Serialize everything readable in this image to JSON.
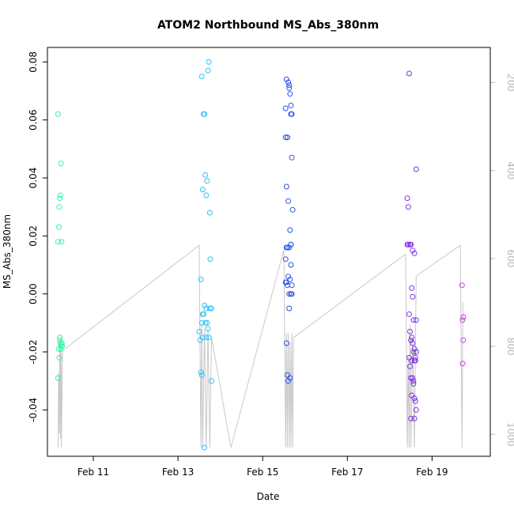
{
  "chart_data": {
    "type": "scatter",
    "title": "ATOM2 Northbound MS_Abs_380nm",
    "xlabel": "Date",
    "ylabel": "MS_Abs_380nm",
    "xlim": [
      "2019-02-09 22:00",
      "2019-02-20 09:00"
    ],
    "ylim": [
      -0.056,
      0.085
    ],
    "x_ticks": [
      {
        "label": "Feb 11",
        "date": "2019-02-11"
      },
      {
        "label": "Feb 13",
        "date": "2019-02-13"
      },
      {
        "label": "Feb 15",
        "date": "2019-02-15"
      },
      {
        "label": "Feb 17",
        "date": "2019-02-17"
      },
      {
        "label": "Feb 19",
        "date": "2019-02-19"
      }
    ],
    "y_ticks": [
      "-0.04",
      "-0.02",
      "0.00",
      "0.02",
      "0.04",
      "0.06",
      "0.08"
    ],
    "y2_ticks": [
      "200",
      "400",
      "600",
      "800",
      "1000"
    ],
    "y2lim": [
      1050,
      120
    ],
    "grid": false,
    "secondary_line": {
      "color": "#c8c8c8",
      "points": [
        [
          "2019-02-10 04:00",
          1030
        ],
        [
          "2019-02-10 04:20",
          860
        ],
        [
          "2019-02-10 04:40",
          1000
        ],
        [
          "2019-02-10 05:00",
          790
        ],
        [
          "2019-02-10 05:20",
          1010
        ],
        [
          "2019-02-10 05:40",
          780
        ],
        [
          "2019-02-10 06:00",
          1030
        ],
        [
          "2019-02-10 06:30",
          810
        ],
        [
          "2019-02-13 12:00",
          570
        ],
        [
          "2019-02-13 13:00",
          1030
        ],
        [
          "2019-02-13 13:30",
          750
        ],
        [
          "2019-02-13 14:00",
          1030
        ],
        [
          "2019-02-13 15:00",
          760
        ],
        [
          "2019-02-13 16:00",
          1030
        ],
        [
          "2019-02-13 17:00",
          760
        ],
        [
          "2019-02-13 18:00",
          1030
        ],
        [
          "2019-02-13 19:00",
          780
        ],
        [
          "2019-02-14 06:00",
          1030
        ],
        [
          "2019-02-15 12:00",
          580
        ],
        [
          "2019-02-15 13:00",
          1030
        ],
        [
          "2019-02-15 13:30",
          770
        ],
        [
          "2019-02-15 14:00",
          1030
        ],
        [
          "2019-02-15 14:30",
          770
        ],
        [
          "2019-02-15 15:00",
          1030
        ],
        [
          "2019-02-15 15:30",
          790
        ],
        [
          "2019-02-15 16:00",
          1030
        ],
        [
          "2019-02-15 16:30",
          770
        ],
        [
          "2019-02-15 17:00",
          1030
        ],
        [
          "2019-02-15 17:30",
          780
        ],
        [
          "2019-02-18 09:00",
          590
        ],
        [
          "2019-02-18 10:00",
          1030
        ],
        [
          "2019-02-18 10:30",
          820
        ],
        [
          "2019-02-18 11:00",
          1030
        ],
        [
          "2019-02-18 11:30",
          750
        ],
        [
          "2019-02-18 12:00",
          1030
        ],
        [
          "2019-02-18 13:00",
          780
        ],
        [
          "2019-02-18 14:00",
          1030
        ],
        [
          "2019-02-18 15:00",
          640
        ],
        [
          "2019-02-19 16:00",
          570
        ],
        [
          "2019-02-19 17:00",
          1030
        ],
        [
          "2019-02-19 17:30",
          700
        ]
      ]
    },
    "series": [
      {
        "color": "#2cf5a8",
        "x": [
          "2019-02-10 04:00",
          "2019-02-10 04:00",
          "2019-02-10 04:30",
          "2019-02-10 04:40",
          "2019-02-10 05:00",
          "2019-02-10 05:20",
          "2019-02-10 05:40",
          "2019-02-10 06:00",
          "2019-02-10 06:10",
          "2019-02-10 06:20",
          "2019-02-10 05:00",
          "2019-02-10 05:20",
          "2019-02-10 04:40",
          "2019-02-10 04:00",
          "2019-02-10 04:20",
          "2019-02-10 05:40",
          "2019-02-10 05:00",
          "2019-02-10 05:30"
        ],
        "y": [
          0.062,
          0.018,
          0.023,
          0.03,
          0.033,
          0.034,
          0.045,
          0.018,
          -0.017,
          -0.018,
          -0.015,
          -0.017,
          -0.022,
          -0.029,
          -0.019,
          -0.018,
          -0.016,
          -0.019
        ]
      },
      {
        "color": "#2bc0f0",
        "x": [
          "2019-02-13 13:00",
          "2019-02-13 13:30",
          "2019-02-13 14:00",
          "2019-02-13 14:30",
          "2019-02-13 15:00",
          "2019-02-13 15:30",
          "2019-02-13 16:00",
          "2019-02-13 16:30",
          "2019-02-13 17:00",
          "2019-02-13 17:30",
          "2019-02-13 18:00",
          "2019-02-13 18:20",
          "2019-02-13 14:00",
          "2019-02-13 15:00",
          "2019-02-13 16:00",
          "2019-02-13 16:30",
          "2019-02-13 17:00",
          "2019-02-13 17:30",
          "2019-02-13 13:30",
          "2019-02-13 14:30",
          "2019-02-13 15:30",
          "2019-02-13 18:00",
          "2019-02-13 19:00",
          "2019-02-13 12:00",
          "2019-02-13 12:30",
          "2019-02-13 13:00",
          "2019-02-13 13:30",
          "2019-02-13 16:00",
          "2019-02-13 19:00",
          "2019-02-13 15:00",
          "2019-02-13 14:00"
        ],
        "y": [
          0.005,
          0.075,
          0.036,
          0.062,
          0.062,
          0.041,
          0.034,
          0.039,
          0.077,
          0.08,
          0.028,
          0.012,
          -0.007,
          -0.004,
          -0.005,
          -0.01,
          -0.012,
          -0.015,
          -0.01,
          -0.007,
          -0.01,
          -0.005,
          -0.03,
          -0.013,
          -0.016,
          -0.027,
          -0.028,
          -0.015,
          -0.005,
          -0.053,
          -0.015
        ]
      },
      {
        "color": "#2a52e8",
        "x": [
          "2019-02-15 13:00",
          "2019-02-15 13:30",
          "2019-02-15 14:00",
          "2019-02-15 14:30",
          "2019-02-15 15:00",
          "2019-02-15 15:30",
          "2019-02-15 16:00",
          "2019-02-15 16:30",
          "2019-02-15 13:00",
          "2019-02-15 14:00",
          "2019-02-15 15:00",
          "2019-02-15 16:00",
          "2019-02-15 16:30",
          "2019-02-15 13:30",
          "2019-02-15 14:30",
          "2019-02-15 15:30",
          "2019-02-15 16:00",
          "2019-02-15 17:00",
          "2019-02-15 13:00",
          "2019-02-15 14:00",
          "2019-02-15 15:00",
          "2019-02-15 16:00",
          "2019-02-15 13:30",
          "2019-02-15 14:30",
          "2019-02-15 15:30",
          "2019-02-15 16:30",
          "2019-02-15 13:00",
          "2019-02-15 14:00",
          "2019-02-15 15:00",
          "2019-02-15 16:00",
          "2019-02-15 13:30",
          "2019-02-15 14:30",
          "2019-02-15 15:30",
          "2019-02-15 14:00",
          "2019-02-15 15:00",
          "2019-02-15 16:00",
          "2019-02-15 16:30",
          "2019-02-15 13:30"
        ],
        "y": [
          0.064,
          0.074,
          0.054,
          0.073,
          0.072,
          0.069,
          0.065,
          0.062,
          0.054,
          0.054,
          0.071,
          0.062,
          0.047,
          0.037,
          0.032,
          0.022,
          0.017,
          0.029,
          0.012,
          0.016,
          0.016,
          0.01,
          0.004,
          0.006,
          0.005,
          0.003,
          0.004,
          0.003,
          -0.005,
          -0.0,
          -0.017,
          -0.03,
          -0.029,
          -0.028,
          0.0,
          0.017,
          -0.0,
          0.016
        ]
      },
      {
        "color": "#7e2ee6",
        "x": [
          "2019-02-18 10:00",
          "2019-02-18 10:30",
          "2019-02-18 11:00",
          "2019-02-18 11:30",
          "2019-02-18 12:00",
          "2019-02-18 13:00",
          "2019-02-18 14:00",
          "2019-02-18 15:00",
          "2019-02-18 10:00",
          "2019-02-18 10:30",
          "2019-02-18 11:00",
          "2019-02-18 11:30",
          "2019-02-18 12:00",
          "2019-02-18 12:30",
          "2019-02-18 13:00",
          "2019-02-18 13:30",
          "2019-02-18 14:00",
          "2019-02-18 14:30",
          "2019-02-18 11:00",
          "2019-02-18 11:30",
          "2019-02-18 12:00",
          "2019-02-18 12:30",
          "2019-02-18 13:00",
          "2019-02-18 13:30",
          "2019-02-18 14:00",
          "2019-02-18 14:30",
          "2019-02-18 15:00",
          "2019-02-18 12:00",
          "2019-02-18 12:30",
          "2019-02-18 13:00",
          "2019-02-18 13:30",
          "2019-02-18 14:00",
          "2019-02-18 14:30",
          "2019-02-18 15:00",
          "2019-02-18 12:30",
          "2019-02-18 13:30",
          "2019-02-18 14:00",
          "2019-02-18 15:00"
        ],
        "y": [
          0.033,
          0.03,
          0.076,
          0.017,
          0.017,
          0.015,
          0.014,
          0.043,
          0.017,
          0.017,
          -0.007,
          -0.013,
          -0.016,
          -0.015,
          -0.017,
          -0.02,
          -0.019,
          -0.023,
          -0.022,
          -0.025,
          -0.029,
          -0.023,
          -0.029,
          -0.031,
          -0.036,
          -0.037,
          -0.04,
          -0.043,
          0.002,
          -0.001,
          -0.009,
          -0.023,
          -0.022,
          -0.02,
          -0.035,
          -0.03,
          -0.043,
          -0.009
        ]
      },
      {
        "color": "#c640e0",
        "x": [
          "2019-02-19 17:00",
          "2019-02-19 17:20",
          "2019-02-19 17:40",
          "2019-02-19 17:20",
          "2019-02-19 17:40"
        ],
        "y": [
          0.003,
          -0.009,
          -0.008,
          -0.024,
          -0.016
        ]
      }
    ]
  }
}
